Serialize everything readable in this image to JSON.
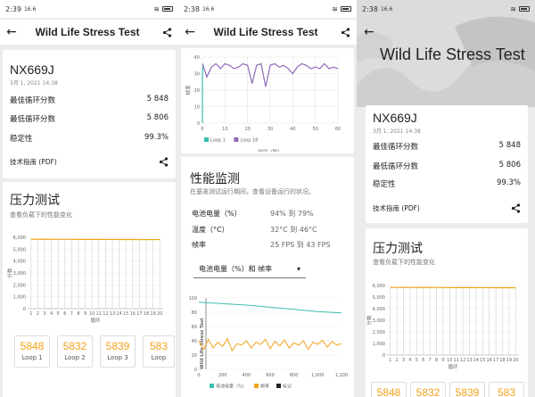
{
  "status": {
    "net": "16.6",
    "screens": [
      {
        "time": "2:39"
      },
      {
        "time": "2:38"
      },
      {
        "time": "2:38"
      }
    ]
  },
  "app": {
    "title": "Wild Life Stress Test"
  },
  "device": {
    "name": "NX669J",
    "date": "3月 1, 2021 14:38"
  },
  "results": [
    {
      "label": "最佳循环分数",
      "value": "5 848"
    },
    {
      "label": "最低循环分数",
      "value": "5 806"
    },
    {
      "label": "稳定性",
      "value": "99.3%"
    }
  ],
  "tech_guide": "技术指南 (PDF)",
  "stress": {
    "title": "压力测试",
    "subtitle": "查看负载下的性能变化",
    "ylabel": "分数",
    "xlabel": "循环"
  },
  "loops": [
    {
      "score": "5848",
      "label": "Loop 1"
    },
    {
      "score": "5832",
      "label": "Loop 2"
    },
    {
      "score": "5839",
      "label": "Loop 3"
    },
    {
      "score": "583",
      "label": "Loop"
    }
  ],
  "monitor": {
    "title": "性能监测",
    "subtitle": "在基准测试运行期间，查看设备运行的状况。",
    "rows": [
      {
        "k": "电池电量（%）",
        "v": "94% 到 79%"
      },
      {
        "k": "温度（°C）",
        "v": "32°C 到 46°C"
      },
      {
        "k": "帧率",
        "v": "25 FPS 到 43 FPS"
      }
    ],
    "dropdown": "电池电量（%）和 帧率",
    "chart_label": "Wild Life Stress Test",
    "legend": [
      {
        "name": "电池电量（%）",
        "color": "#3bbfae"
      },
      {
        "name": "帧率",
        "color": "#f3a21b"
      },
      {
        "name": "标记",
        "color": "#222222"
      }
    ]
  },
  "colors": {
    "accent": "#f3a21b",
    "teal": "#3bbfae",
    "purple": "#8e6bb8"
  },
  "chart_data": [
    {
      "type": "line",
      "title": "",
      "xlabel": "时间（秒）",
      "ylabel": "帧率",
      "xlim": [
        0,
        60
      ],
      "ylim": [
        0,
        40
      ],
      "xticks": [
        "0",
        "10",
        "20",
        "30",
        "40",
        "50",
        "60"
      ],
      "yticks": [
        "0",
        "10",
        "20",
        "30",
        "40"
      ],
      "series": [
        {
          "name": "Loop 1",
          "color": "#3bbfae",
          "x": [
            0,
            0,
            0.3
          ],
          "y": [
            0,
            30,
            36
          ]
        },
        {
          "name": "Loop 18",
          "color": "#8e6bb8",
          "x": [
            0,
            2,
            4,
            6,
            8,
            10,
            12,
            14,
            16,
            18,
            20,
            22,
            24,
            26,
            28,
            30,
            32,
            34,
            36,
            38,
            40,
            42,
            44,
            46,
            48,
            50,
            52,
            54,
            56,
            58,
            60
          ],
          "y": [
            36,
            28,
            34,
            36,
            33,
            36,
            35,
            33,
            34,
            36,
            35,
            24,
            35,
            36,
            22,
            35,
            36,
            34,
            35,
            33,
            30,
            34,
            36,
            35,
            33,
            34,
            33,
            36,
            33,
            34,
            33
          ]
        }
      ]
    },
    {
      "type": "bar",
      "title": "",
      "xlabel": "循环",
      "ylabel": "分数",
      "categories": [
        "1",
        "2",
        "3",
        "4",
        "5",
        "6",
        "7",
        "8",
        "9",
        "10",
        "11",
        "12",
        "13",
        "14",
        "15",
        "16",
        "17",
        "18",
        "19",
        "20"
      ],
      "values": [
        5848,
        5832,
        5839,
        5830,
        5828,
        5826,
        5825,
        5824,
        5822,
        5820,
        5820,
        5818,
        5816,
        5815,
        5814,
        5812,
        5810,
        5809,
        5808,
        5806
      ],
      "yticks": [
        "0",
        "1,000",
        "2,000",
        "3,000",
        "4,000",
        "5,000",
        "6,000"
      ],
      "ylim": [
        0,
        6000
      ]
    },
    {
      "type": "line",
      "title": "",
      "xlabel": "",
      "xlim": [
        0,
        1200
      ],
      "ylim": [
        0,
        100
      ],
      "xticks": [
        "0",
        "200",
        "400",
        "600",
        "800",
        "1,000",
        "1,200"
      ],
      "yticks": [
        "0",
        "20",
        "40",
        "60",
        "80",
        "100"
      ],
      "series": [
        {
          "name": "电池电量（%）",
          "color": "#3bbfae",
          "x": [
            0,
            200,
            400,
            600,
            800,
            1000,
            1200
          ],
          "y": [
            94,
            92,
            90,
            87,
            84,
            81,
            79
          ]
        },
        {
          "name": "帧率",
          "color": "#f3a21b",
          "x": [
            0,
            40,
            80,
            120,
            160,
            200,
            240,
            280,
            320,
            360,
            400,
            440,
            480,
            520,
            560,
            600,
            640,
            680,
            720,
            760,
            800,
            840,
            880,
            920,
            960,
            1000,
            1040,
            1080,
            1120,
            1160,
            1200
          ],
          "y": [
            40,
            28,
            42,
            30,
            38,
            32,
            43,
            26,
            36,
            34,
            40,
            30,
            38,
            35,
            42,
            29,
            39,
            33,
            41,
            30,
            37,
            34,
            40,
            28,
            38,
            35,
            41,
            31,
            39,
            34,
            36
          ]
        }
      ]
    }
  ]
}
